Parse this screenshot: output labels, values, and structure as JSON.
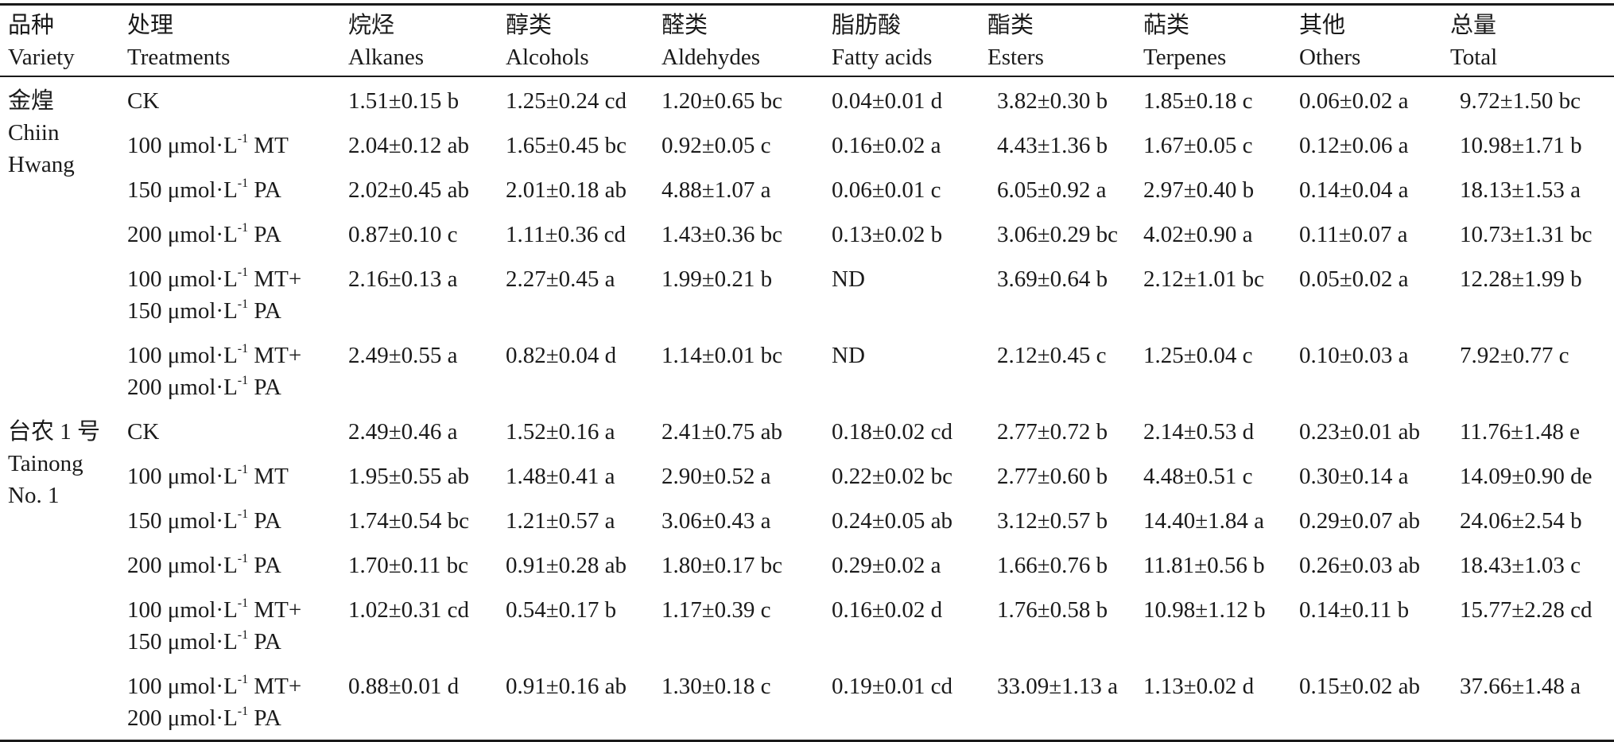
{
  "headers": [
    {
      "zh": "品种",
      "en": "Variety"
    },
    {
      "zh": "处理",
      "en": "Treatments"
    },
    {
      "zh": "烷烃",
      "en": "Alkanes"
    },
    {
      "zh": "醇类",
      "en": "Alcohols"
    },
    {
      "zh": "醛类",
      "en": "Aldehydes"
    },
    {
      "zh": "脂肪酸",
      "en": "Fatty acids"
    },
    {
      "zh": "酯类",
      "en": "Esters"
    },
    {
      "zh": "萜类",
      "en": "Terpenes"
    },
    {
      "zh": "其他",
      "en": "Others"
    },
    {
      "zh": "总量",
      "en": "Total"
    }
  ],
  "unit": {
    "pre": "μmol·L",
    "sup": "-1"
  },
  "varieties": [
    {
      "zh": "金煌",
      "en_lines": [
        "Chiin",
        "Hwang"
      ],
      "rows": [
        {
          "treatment": [
            {
              "text": "CK",
              "unit": false
            }
          ],
          "values": [
            "1.51±0.15 b",
            "1.25±0.24 cd",
            "1.20±0.65 bc",
            "0.04±0.01 d",
            "3.82±0.30 b",
            "1.85±0.18 c",
            "0.06±0.02 a",
            "9.72±1.50 bc"
          ]
        },
        {
          "treatment": [
            {
              "dose": "100",
              "agent": "MT",
              "unit": true
            }
          ],
          "values": [
            "2.04±0.12 ab",
            "1.65±0.45 bc",
            "0.92±0.05 c",
            "0.16±0.02 a",
            "4.43±1.36 b",
            "1.67±0.05 c",
            "0.12±0.06 a",
            "10.98±1.71 b"
          ]
        },
        {
          "treatment": [
            {
              "dose": "150",
              "agent": "PA",
              "unit": true
            }
          ],
          "values": [
            "2.02±0.45 ab",
            "2.01±0.18 ab",
            "4.88±1.07 a",
            "0.06±0.01 c",
            "6.05±0.92 a",
            "2.97±0.40 b",
            "0.14±0.04 a",
            "18.13±1.53 a"
          ]
        },
        {
          "treatment": [
            {
              "dose": "200",
              "agent": "PA",
              "unit": true
            }
          ],
          "values": [
            "0.87±0.10 c",
            "1.11±0.36 cd",
            "1.43±0.36 bc",
            "0.13±0.02 b",
            "3.06±0.29 bc",
            "4.02±0.90 a",
            "0.11±0.07 a",
            "10.73±1.31 bc"
          ]
        },
        {
          "treatment": [
            {
              "dose": "100",
              "agent": "MT+",
              "unit": true
            },
            {
              "dose": "150",
              "agent": "PA",
              "unit": true
            }
          ],
          "values": [
            "2.16±0.13 a",
            "2.27±0.45 a",
            "1.99±0.21 b",
            "ND",
            "3.69±0.64 b",
            "2.12±1.01 bc",
            "0.05±0.02 a",
            "12.28±1.99 b"
          ]
        },
        {
          "treatment": [
            {
              "dose": "100",
              "agent": "MT+",
              "unit": true
            },
            {
              "dose": "200",
              "agent": "PA",
              "unit": true
            }
          ],
          "values": [
            "2.49±0.55 a",
            "0.82±0.04 d",
            "1.14±0.01 bc",
            "ND",
            "2.12±0.45 c",
            "1.25±0.04 c",
            "0.10±0.03 a",
            "7.92±0.77 c"
          ]
        }
      ]
    },
    {
      "zh": "台农 1 号",
      "en_lines": [
        "Tainong",
        "No. 1"
      ],
      "rows": [
        {
          "treatment": [
            {
              "text": "CK",
              "unit": false
            }
          ],
          "values": [
            "2.49±0.46 a",
            "1.52±0.16 a",
            "2.41±0.75 ab",
            "0.18±0.02 cd",
            "2.77±0.72 b",
            "2.14±0.53 d",
            "0.23±0.01 ab",
            "11.76±1.48 e"
          ]
        },
        {
          "treatment": [
            {
              "dose": "100",
              "agent": "MT",
              "unit": true
            }
          ],
          "values": [
            "1.95±0.55 ab",
            "1.48±0.41 a",
            "2.90±0.52 a",
            "0.22±0.02 bc",
            "2.77±0.60 b",
            "4.48±0.51 c",
            "0.30±0.14 a",
            "14.09±0.90 de"
          ]
        },
        {
          "treatment": [
            {
              "dose": "150",
              "agent": "PA",
              "unit": true
            }
          ],
          "values": [
            "1.74±0.54 bc",
            "1.21±0.57 a",
            "3.06±0.43 a",
            "0.24±0.05 ab",
            "3.12±0.57 b",
            "14.40±1.84 a",
            "0.29±0.07 ab",
            "24.06±2.54 b"
          ]
        },
        {
          "treatment": [
            {
              "dose": "200",
              "agent": "PA",
              "unit": true
            }
          ],
          "values": [
            "1.70±0.11 bc",
            "0.91±0.28 ab",
            "1.80±0.17 bc",
            "0.29±0.02 a",
            "1.66±0.76 b",
            "11.81±0.56 b",
            "0.26±0.03 ab",
            "18.43±1.03 c"
          ]
        },
        {
          "treatment": [
            {
              "dose": "100",
              "agent": "MT+",
              "unit": true
            },
            {
              "dose": "150",
              "agent": "PA",
              "unit": true
            }
          ],
          "values": [
            "1.02±0.31 cd",
            "0.54±0.17 b",
            "1.17±0.39 c",
            "0.16±0.02 d",
            "1.76±0.58 b",
            "10.98±1.12 b",
            "0.14±0.11 b",
            "15.77±2.28 cd"
          ]
        },
        {
          "treatment": [
            {
              "dose": "100",
              "agent": "MT+",
              "unit": true
            },
            {
              "dose": "200",
              "agent": "PA",
              "unit": true
            }
          ],
          "values": [
            "0.88±0.01 d",
            "0.91±0.16 ab",
            "1.30±0.18 c",
            "0.19±0.01 cd",
            "33.09±1.13 a",
            "1.13±0.02 d",
            "0.15±0.02 ab",
            "37.66±1.48 a"
          ]
        }
      ]
    }
  ]
}
